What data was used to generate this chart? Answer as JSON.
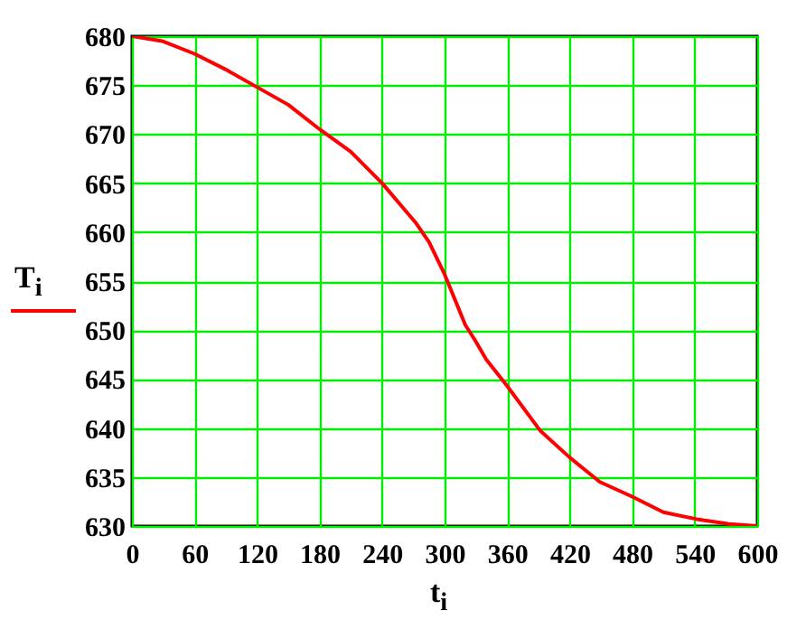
{
  "chart_data": {
    "type": "line",
    "xlabel": "t$_{i}$",
    "ylabel": "T$_{i}$",
    "x": [
      0,
      29,
      60,
      90,
      120,
      150,
      180,
      210,
      240,
      272,
      285,
      300,
      320,
      329,
      340,
      360,
      392,
      420,
      449,
      480,
      510,
      542,
      573,
      600
    ],
    "series": [
      {
        "color": "#ff0000",
        "values": [
          680,
          679.5,
          678.2,
          676.6,
          674.8,
          673,
          670.5,
          668.2,
          665,
          661,
          659,
          655.7,
          650.5,
          649,
          647,
          644.3,
          639.7,
          637,
          634.5,
          633,
          631.4,
          630.7,
          630.2,
          630
        ]
      }
    ],
    "xlim": [
      0,
      600
    ],
    "xticks": [
      0,
      60,
      120,
      180,
      240,
      300,
      360,
      420,
      480,
      540,
      600
    ],
    "ylim": [
      630,
      680
    ],
    "yticks": [
      630,
      635,
      640,
      645,
      650,
      655,
      660,
      665,
      670,
      675,
      680
    ],
    "grid": true,
    "marker": "none",
    "line_style": "solid"
  }
}
